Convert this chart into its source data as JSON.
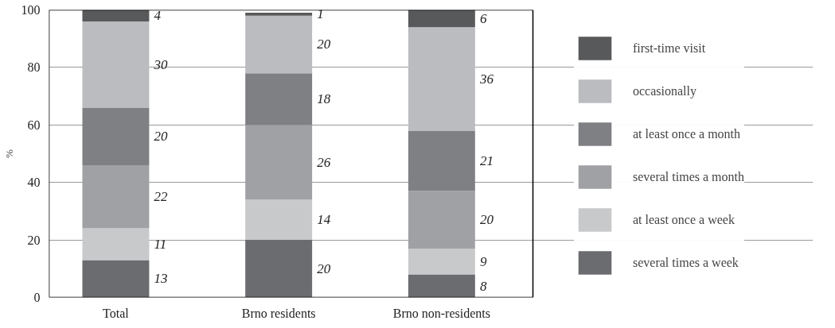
{
  "chart_data": {
    "type": "bar",
    "stacked": true,
    "ylabel": "%",
    "categories": [
      "Total",
      "Brno residents",
      "Brno non-residents"
    ],
    "ylim": [
      0,
      100
    ],
    "yticks": [
      0,
      20,
      40,
      60,
      80,
      100
    ],
    "grid": "y",
    "legend": "right",
    "data_labels": true,
    "series": [
      {
        "name": "several times a week",
        "color": "#6b6c70",
        "values": [
          13,
          20,
          8
        ]
      },
      {
        "name": "at least once a week",
        "color": "#c8c9cb",
        "values": [
          11,
          14,
          9
        ]
      },
      {
        "name": "several times a month",
        "color": "#a0a1a4",
        "values": [
          22,
          26,
          20
        ]
      },
      {
        "name": "at least once a month",
        "color": "#7f8084",
        "values": [
          20,
          18,
          21
        ]
      },
      {
        "name": "occasionally",
        "color": "#bbbcbf",
        "values": [
          30,
          20,
          36
        ]
      },
      {
        "name": "first-time visit",
        "color": "#58595b",
        "values": [
          4,
          1,
          6
        ]
      }
    ]
  }
}
